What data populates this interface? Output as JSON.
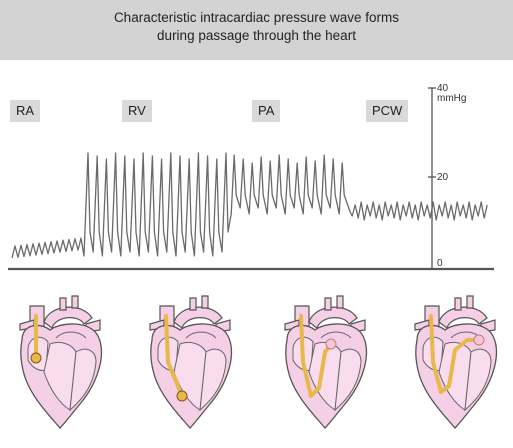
{
  "header": {
    "title_line1": "Characteristic intracardiac pressure wave forms",
    "title_line2": "during passage through the heart"
  },
  "chambers": [
    {
      "label": "RA"
    },
    {
      "label": "RV"
    },
    {
      "label": "PA"
    },
    {
      "label": "PCW"
    }
  ],
  "axis": {
    "label_40": "40",
    "unit": "mmHg",
    "label_20": "20",
    "label_0": "0"
  },
  "colors": {
    "header_bg": "#d3d3d3",
    "label_bg": "#d9d9d9",
    "trace": "#6a6a6a",
    "axis": "#555555",
    "heart_fill": "#f5cfe6",
    "heart_stroke": "#555555",
    "catheter": "#e8b84a"
  }
}
